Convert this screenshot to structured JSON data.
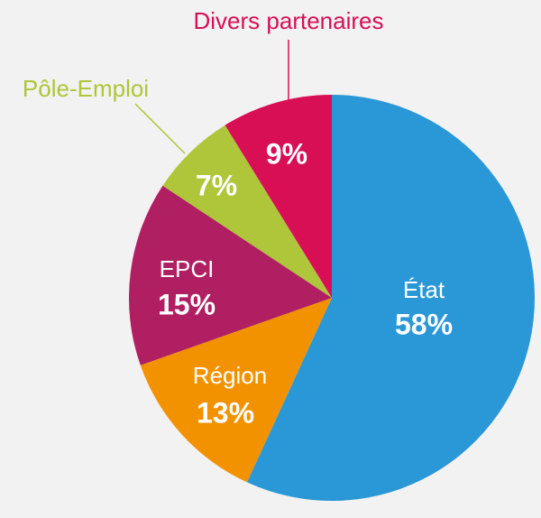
{
  "chart_data": {
    "type": "pie",
    "categories": [
      "État",
      "Région",
      "EPCI",
      "Pôle-Emploi",
      "Divers partenaires"
    ],
    "values": [
      58,
      13,
      15,
      7,
      9
    ],
    "value_labels": [
      "58%",
      "13%",
      "15%",
      "7%",
      "9%"
    ],
    "colors": [
      "#2a98d6",
      "#f39200",
      "#b01f62",
      "#afc53a",
      "#d80f55"
    ]
  }
}
